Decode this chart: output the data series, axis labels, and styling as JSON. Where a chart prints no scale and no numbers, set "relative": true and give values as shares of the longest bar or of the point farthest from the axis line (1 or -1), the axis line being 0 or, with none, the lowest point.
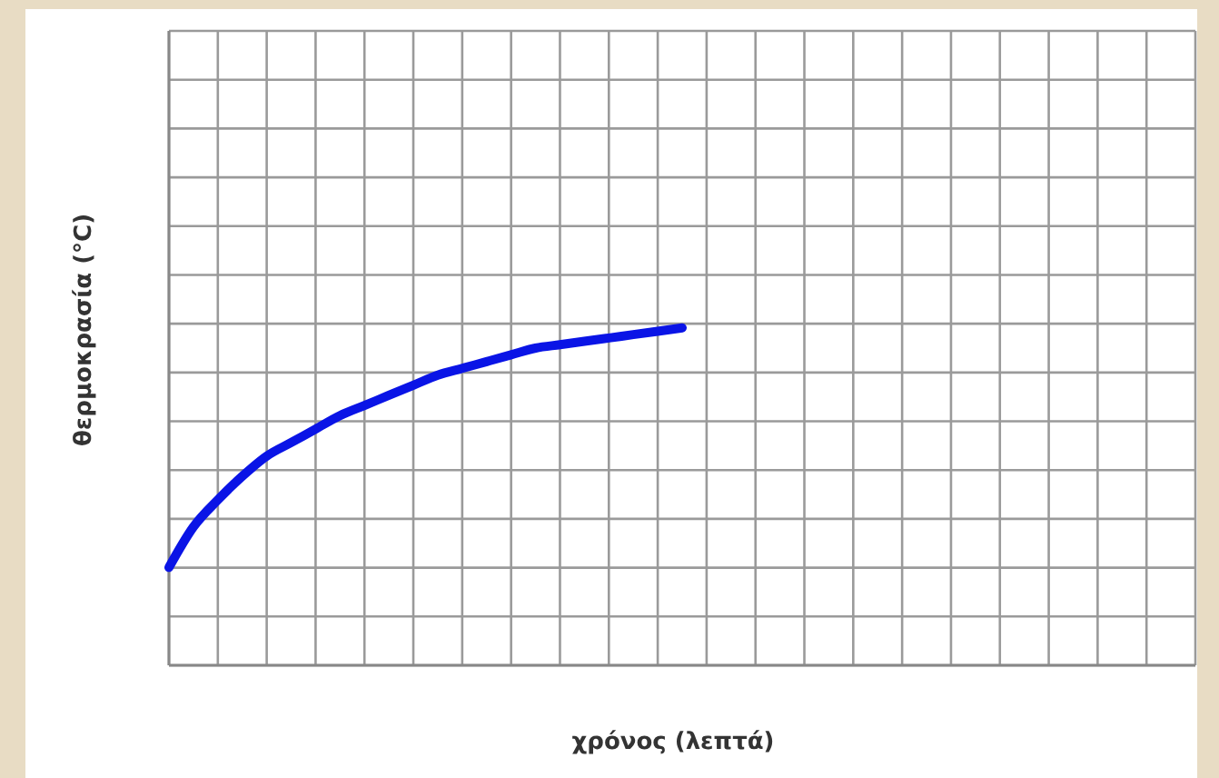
{
  "chart_data": {
    "type": "line",
    "relative": true,
    "xlabel": "χρόνος (λεπτά)",
    "ylabel": "θερμοκρασία (°C)",
    "grid": true,
    "marker": "none",
    "line_style": "solid",
    "categories": [
      null,
      null,
      null,
      null,
      null,
      null,
      null,
      null,
      null,
      null,
      null,
      null,
      null,
      null,
      null,
      null,
      null,
      null,
      null,
      null,
      null,
      null,
      null,
      null,
      null,
      null,
      null,
      null,
      null,
      null,
      null,
      null,
      null,
      null,
      null,
      null,
      null,
      null,
      null,
      null,
      null,
      null,
      null
    ],
    "series": [
      {
        "color": "#0a14e6",
        "values": [
          0.29,
          0.41,
          0.49,
          0.56,
          0.62,
          0.66,
          0.7,
          0.74,
          0.77,
          0.8,
          0.83,
          0.86,
          0.88,
          0.9,
          0.92,
          0.94,
          0.95,
          0.96,
          0.97,
          0.98,
          0.99,
          1,
          null,
          null,
          null,
          null,
          null,
          null,
          null,
          null,
          null,
          null,
          null,
          null,
          null,
          null,
          null,
          null,
          null,
          null,
          null,
          null,
          null
        ]
      }
    ]
  }
}
